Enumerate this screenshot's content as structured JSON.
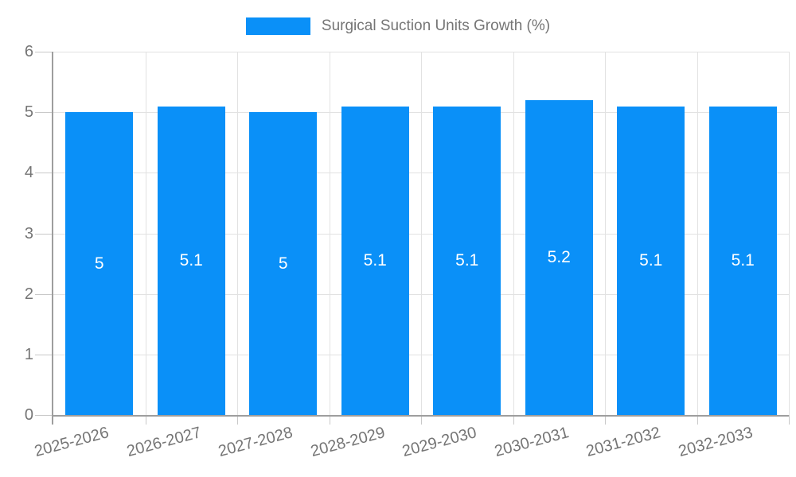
{
  "chart_data": {
    "type": "bar",
    "title": "Surgical Suction Units Growth (%)",
    "categories": [
      "2025-2026",
      "2026-2027",
      "2027-2028",
      "2028-2029",
      "2029-2030",
      "2030-2031",
      "2031-2032",
      "2032-2033"
    ],
    "values": [
      5,
      5.1,
      5,
      5.1,
      5.1,
      5.2,
      5.1,
      5.1
    ],
    "value_labels": [
      "5",
      "5.1",
      "5",
      "5.1",
      "5.1",
      "5.2",
      "5.1",
      "5.1"
    ],
    "xlabel": "",
    "ylabel": "",
    "ylim": [
      0,
      6
    ],
    "yticks": [
      "0",
      "1",
      "2",
      "3",
      "4",
      "5",
      "6"
    ],
    "ytick_values": [
      0,
      1,
      2,
      3,
      4,
      5,
      6
    ],
    "grid": true,
    "legend_position": "top",
    "value_label_position": "inside-center",
    "x_label_rotation_deg": -15,
    "colors": {
      "bar": "#0A90F8",
      "grid": "#E2E2E2",
      "axis": "#9E9E9E",
      "tick": "#C9C9C9",
      "text": "#757575",
      "value_label": "#FFFFFF",
      "background": "#FFFFFF"
    }
  }
}
